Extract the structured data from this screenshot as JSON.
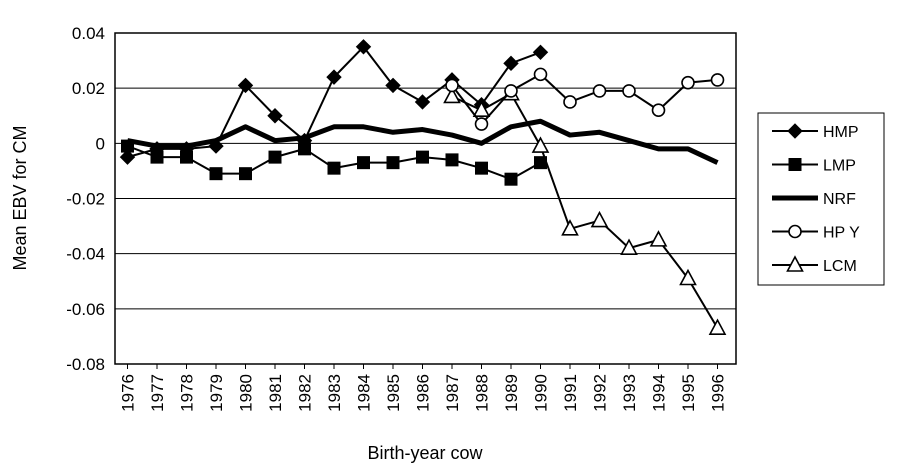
{
  "chart_data": {
    "type": "line",
    "title": "",
    "xlabel": "Birth-year cow",
    "ylabel": "Mean EBV for CM",
    "categories": [
      "1976",
      "1977",
      "1978",
      "1979",
      "1980",
      "1981",
      "1982",
      "1983",
      "1984",
      "1985",
      "1986",
      "1987",
      "1988",
      "1989",
      "1990",
      "1991",
      "1992",
      "1993",
      "1994",
      "1995",
      "1996"
    ],
    "ylim": [
      -0.08,
      0.04
    ],
    "yticks": [
      0.04,
      0.02,
      0,
      -0.02,
      -0.04,
      -0.06,
      -0.08
    ],
    "ytick_labels": [
      "0.04",
      "0.02",
      "0",
      "-0.02",
      "-0.04",
      "-0.06",
      "-0.08"
    ],
    "grid": "horizontal",
    "legend_position": "right",
    "series": [
      {
        "name": "HMP",
        "marker": "diamond",
        "values": [
          -0.005,
          -0.002,
          -0.002,
          -0.001,
          0.021,
          0.01,
          0.001,
          0.024,
          0.035,
          0.021,
          0.015,
          0.023,
          0.014,
          0.029,
          0.033,
          null,
          null,
          null,
          null,
          null,
          null
        ]
      },
      {
        "name": "LMP",
        "marker": "square",
        "values": [
          -0.001,
          -0.005,
          -0.005,
          -0.011,
          -0.011,
          -0.005,
          -0.002,
          -0.009,
          -0.007,
          -0.007,
          -0.005,
          -0.006,
          -0.009,
          -0.013,
          -0.007,
          null,
          null,
          null,
          null,
          null,
          null
        ]
      },
      {
        "name": "NRF",
        "marker": "none",
        "values": [
          0.001,
          -0.001,
          -0.001,
          0.001,
          0.006,
          0.001,
          0.002,
          0.006,
          0.006,
          0.004,
          0.005,
          0.003,
          0.0,
          0.006,
          0.008,
          0.003,
          0.004,
          0.001,
          -0.002,
          -0.002,
          -0.007
        ]
      },
      {
        "name": "HP Y",
        "marker": "circle",
        "values": [
          null,
          null,
          null,
          null,
          null,
          null,
          null,
          null,
          null,
          null,
          null,
          0.021,
          0.007,
          0.019,
          0.025,
          0.015,
          0.019,
          0.019,
          0.012,
          0.022,
          0.023
        ]
      },
      {
        "name": "LCM",
        "marker": "triangle",
        "values": [
          null,
          null,
          null,
          null,
          null,
          null,
          null,
          null,
          null,
          null,
          null,
          0.017,
          0.012,
          0.018,
          -0.001,
          -0.031,
          -0.028,
          -0.038,
          -0.035,
          -0.049,
          -0.067
        ]
      }
    ]
  }
}
